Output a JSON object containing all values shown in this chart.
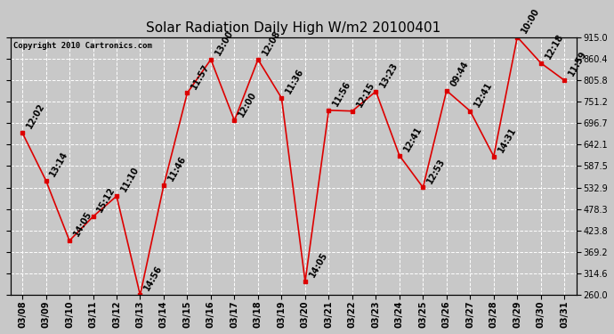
{
  "title": "Solar Radiation Daily High W/m2 20100401",
  "copyright": "Copyright 2010 Cartronics.com",
  "dates": [
    "03/08",
    "03/09",
    "03/10",
    "03/11",
    "03/12",
    "03/13",
    "03/14",
    "03/15",
    "03/16",
    "03/17",
    "03/18",
    "03/19",
    "03/20",
    "03/21",
    "03/22",
    "03/23",
    "03/24",
    "03/25",
    "03/26",
    "03/27",
    "03/28",
    "03/29",
    "03/30",
    "03/31"
  ],
  "values": [
    672,
    551,
    398,
    459,
    511,
    260,
    538,
    773,
    858,
    703,
    858,
    760,
    294,
    729,
    727,
    777,
    614,
    533,
    779,
    727,
    612,
    915,
    849,
    805
  ],
  "labels": [
    "12:02",
    "13:14",
    "14:05",
    "15:12",
    "11:10",
    "14:56",
    "11:46",
    "11:57",
    "13:00",
    "12:00",
    "12:08",
    "11:36",
    "14:05",
    "11:56",
    "12:15",
    "13:23",
    "12:41",
    "12:53",
    "09:44",
    "12:41",
    "14:31",
    "10:00",
    "12:18",
    "11:59"
  ],
  "ylim_min": 260.0,
  "ylim_max": 915.0,
  "yticks": [
    260.0,
    314.6,
    369.2,
    423.8,
    478.3,
    532.9,
    587.5,
    642.1,
    696.7,
    751.2,
    805.8,
    860.4,
    915.0
  ],
  "line_color": "#dd0000",
  "marker_color": "#dd0000",
  "bg_color": "#c8c8c8",
  "grid_color": "#ffffff",
  "title_fontsize": 11,
  "label_fontsize": 7,
  "tick_fontsize": 7,
  "copyright_fontsize": 6.5
}
